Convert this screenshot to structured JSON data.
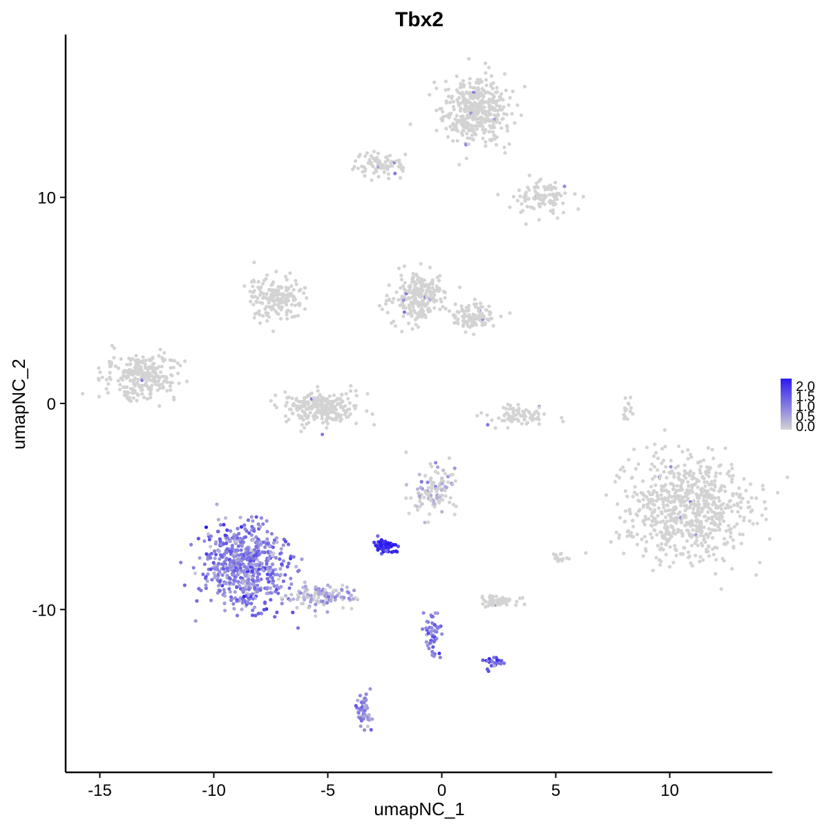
{
  "chart_data": {
    "type": "scatter",
    "title": "Tbx2",
    "xlabel": "umapNC_1",
    "ylabel": "umapNC_2",
    "xlim": [
      -16.5,
      14.5
    ],
    "ylim": [
      -17.9,
      17.9
    ],
    "x_ticks": [
      -15,
      -10,
      -5,
      0,
      5,
      10
    ],
    "y_ticks": [
      -10,
      0,
      10
    ],
    "x_tick_labels": [
      "-15",
      "-10",
      "-5",
      "0",
      "5",
      "10"
    ],
    "y_tick_labels": [
      "-10",
      "0",
      "10"
    ],
    "grid": false,
    "legend": {
      "position": "right",
      "type": "colorbar",
      "labels": [
        "2.0",
        "1.5",
        "1.0",
        "0.5",
        "0.0"
      ],
      "range": [
        0,
        2.0
      ],
      "low_color": "#d3d3d3",
      "high_color": "#2b1af0"
    },
    "clusters": [
      {
        "cx": 1.5,
        "cy": 14.2,
        "rx": 1.3,
        "ry": 1.4,
        "n": 420,
        "expr": 0.0
      },
      {
        "cx": -2.8,
        "cy": 11.6,
        "rx": 0.9,
        "ry": 0.6,
        "n": 80,
        "expr": 0.0
      },
      {
        "cx": 4.5,
        "cy": 10.0,
        "rx": 1.3,
        "ry": 0.7,
        "n": 110,
        "expr": 0.0
      },
      {
        "cx": -7.3,
        "cy": 5.1,
        "rx": 1.1,
        "ry": 0.9,
        "n": 180,
        "expr": 0.0
      },
      {
        "cx": -1.0,
        "cy": 5.2,
        "rx": 1.0,
        "ry": 1.1,
        "n": 230,
        "expr": 0.0
      },
      {
        "cx": 1.3,
        "cy": 4.2,
        "rx": 0.9,
        "ry": 0.6,
        "n": 110,
        "expr": 0.0
      },
      {
        "cx": -13.2,
        "cy": 1.3,
        "rx": 1.4,
        "ry": 1.0,
        "n": 260,
        "expr": 0.0
      },
      {
        "cx": -5.3,
        "cy": -0.2,
        "rx": 1.5,
        "ry": 0.7,
        "n": 260,
        "expr": 0.0
      },
      {
        "cx": 3.4,
        "cy": -0.6,
        "rx": 1.2,
        "ry": 0.4,
        "n": 80,
        "expr": 0.0
      },
      {
        "cx": 10.8,
        "cy": -5.1,
        "rx": 2.4,
        "ry": 2.3,
        "n": 700,
        "expr": 0.0
      },
      {
        "cx": -0.4,
        "cy": -4.3,
        "rx": 0.9,
        "ry": 1.1,
        "n": 110,
        "expr": 0.05
      },
      {
        "cx": -8.7,
        "cy": -7.9,
        "rx": 1.7,
        "ry": 1.8,
        "n": 620,
        "expr": 0.9
      },
      {
        "cx": -5.3,
        "cy": -9.4,
        "rx": 1.3,
        "ry": 0.5,
        "n": 110,
        "expr": 0.35
      },
      {
        "cx": -2.5,
        "cy": -6.9,
        "rx": 0.5,
        "ry": 0.3,
        "n": 70,
        "expr": 1.9
      },
      {
        "cx": 2.5,
        "cy": -9.6,
        "rx": 0.8,
        "ry": 0.3,
        "n": 60,
        "expr": 0.0
      },
      {
        "cx": -0.4,
        "cy": -11.2,
        "rx": 0.35,
        "ry": 1.2,
        "n": 50,
        "expr": 0.9
      },
      {
        "cx": 2.3,
        "cy": -12.6,
        "rx": 0.3,
        "ry": 0.3,
        "n": 25,
        "expr": 1.4
      },
      {
        "cx": -3.4,
        "cy": -14.9,
        "rx": 0.3,
        "ry": 0.7,
        "n": 50,
        "expr": 0.7
      },
      {
        "cx": 5.1,
        "cy": -7.5,
        "rx": 0.3,
        "ry": 0.3,
        "n": 15,
        "expr": 0.0
      },
      {
        "cx": 8.1,
        "cy": -0.3,
        "rx": 0.2,
        "ry": 0.6,
        "n": 15,
        "expr": 0.0
      }
    ]
  }
}
